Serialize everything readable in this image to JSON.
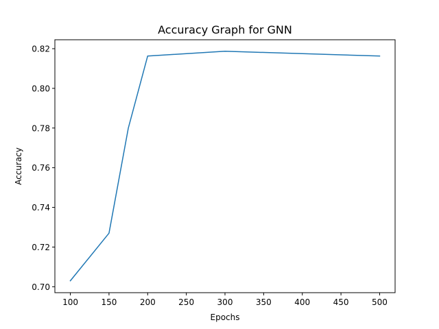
{
  "chart_data": {
    "type": "line",
    "title": "Accuracy Graph for GNN",
    "xlabel": "Epochs",
    "ylabel": "Accuracy",
    "xlim": [
      80,
      520
    ],
    "ylim": [
      0.697,
      0.8245
    ],
    "x_ticks": [
      100,
      150,
      200,
      250,
      300,
      350,
      400,
      450,
      500
    ],
    "y_ticks": [
      0.7,
      0.72,
      0.74,
      0.76,
      0.78,
      0.8,
      0.82
    ],
    "x_tick_labels": [
      "100",
      "150",
      "200",
      "250",
      "300",
      "350",
      "400",
      "450",
      "500"
    ],
    "y_tick_labels": [
      "0.70",
      "0.72",
      "0.74",
      "0.76",
      "0.78",
      "0.80",
      "0.82"
    ],
    "grid": false,
    "series": [
      {
        "color": "#1f77b4",
        "x": [
          100,
          150,
          175,
          200,
          300,
          500
        ],
        "y": [
          0.703,
          0.727,
          0.78,
          0.8163,
          0.8187,
          0.8163
        ]
      }
    ]
  }
}
